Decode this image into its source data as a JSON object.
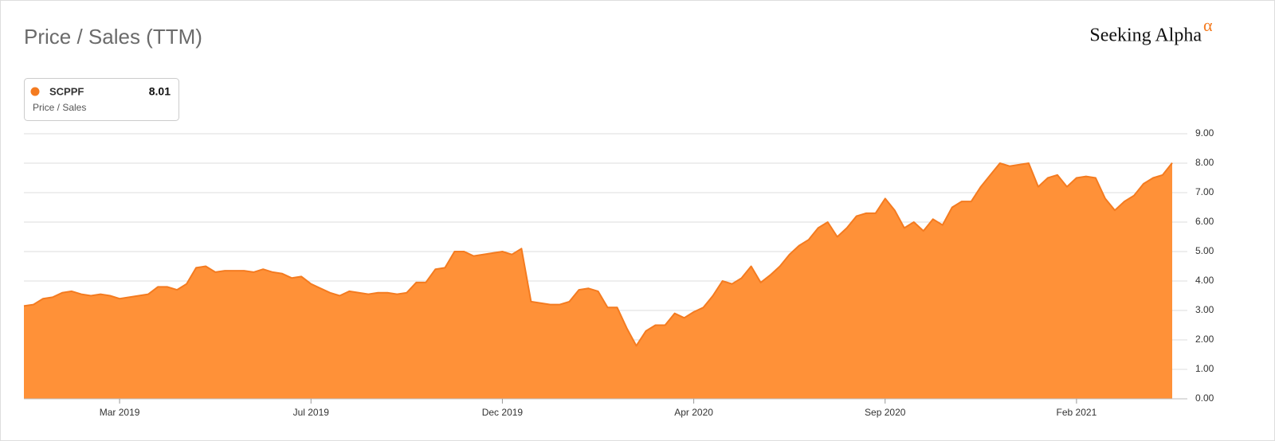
{
  "chart_data": {
    "type": "area",
    "title": "Price / Sales (TTM)",
    "brand": "Seeking Alpha",
    "brand_mark": "α",
    "categories": [
      null,
      null,
      null,
      null,
      null,
      null,
      null,
      null,
      null,
      null,
      "Mar 2019",
      null,
      null,
      null,
      null,
      null,
      null,
      null,
      null,
      null,
      null,
      null,
      null,
      null,
      null,
      null,
      null,
      null,
      null,
      null,
      "Jul 2019",
      null,
      null,
      null,
      null,
      null,
      null,
      null,
      null,
      null,
      null,
      null,
      null,
      null,
      null,
      null,
      null,
      null,
      null,
      null,
      "Dec 2019",
      null,
      null,
      null,
      null,
      null,
      null,
      null,
      null,
      null,
      null,
      null,
      null,
      null,
      null,
      null,
      null,
      null,
      null,
      null,
      "Apr 2020",
      null,
      null,
      null,
      null,
      null,
      null,
      null,
      null,
      null,
      null,
      null,
      null,
      null,
      null,
      null,
      null,
      null,
      null,
      null,
      "Sep 2020",
      null,
      null,
      null,
      null,
      null,
      null,
      null,
      null,
      null,
      null,
      null,
      null,
      null,
      null,
      null,
      null,
      null,
      null,
      null,
      "Feb 2021",
      null,
      null,
      null,
      null,
      null,
      null,
      null,
      null,
      null,
      null
    ],
    "series": [
      {
        "name": "SCPPF",
        "description": "Price / Sales",
        "latest": 8.01,
        "color": "#f47b20",
        "fill": "#ff9138",
        "values": [
          3.15,
          3.2,
          3.4,
          3.45,
          3.6,
          3.65,
          3.55,
          3.5,
          3.55,
          3.5,
          3.4,
          3.45,
          3.5,
          3.55,
          3.8,
          3.8,
          3.7,
          3.9,
          4.45,
          4.5,
          4.3,
          4.35,
          4.35,
          4.35,
          4.3,
          4.4,
          4.3,
          4.25,
          4.1,
          4.15,
          3.9,
          3.75,
          3.6,
          3.5,
          3.65,
          3.6,
          3.55,
          3.6,
          3.6,
          3.55,
          3.6,
          3.95,
          3.95,
          4.4,
          4.45,
          5.0,
          5.0,
          4.85,
          4.9,
          4.95,
          5.0,
          4.9,
          5.1,
          3.3,
          3.25,
          3.2,
          3.2,
          3.3,
          3.7,
          3.75,
          3.65,
          3.1,
          3.1,
          2.4,
          1.8,
          2.3,
          2.5,
          2.5,
          2.9,
          2.75,
          2.95,
          3.1,
          3.5,
          4.0,
          3.9,
          4.1,
          4.5,
          3.95,
          4.2,
          4.5,
          4.9,
          5.2,
          5.4,
          5.8,
          6.0,
          5.5,
          5.8,
          6.2,
          6.3,
          6.3,
          6.8,
          6.4,
          5.8,
          6.0,
          5.7,
          6.1,
          5.9,
          6.5,
          6.7,
          6.7,
          7.2,
          7.6,
          8.0,
          7.9,
          7.95,
          8.0,
          7.2,
          7.5,
          7.6,
          7.2,
          7.5,
          7.55,
          7.5,
          6.8,
          6.4,
          6.7,
          6.9,
          7.3,
          7.5,
          7.6,
          8.01
        ]
      }
    ],
    "ylim": [
      0,
      9
    ],
    "yticks": [
      {
        "value": 0,
        "label": "0.00"
      },
      {
        "value": 1,
        "label": "1.00"
      },
      {
        "value": 2,
        "label": "2.00"
      },
      {
        "value": 3,
        "label": "3.00"
      },
      {
        "value": 4,
        "label": "4.00"
      },
      {
        "value": 5,
        "label": "5.00"
      },
      {
        "value": 6,
        "label": "6.00"
      },
      {
        "value": 7,
        "label": "7.00"
      },
      {
        "value": 8,
        "label": "8.00"
      },
      {
        "value": 9,
        "label": "9.00"
      }
    ],
    "grid": true
  }
}
